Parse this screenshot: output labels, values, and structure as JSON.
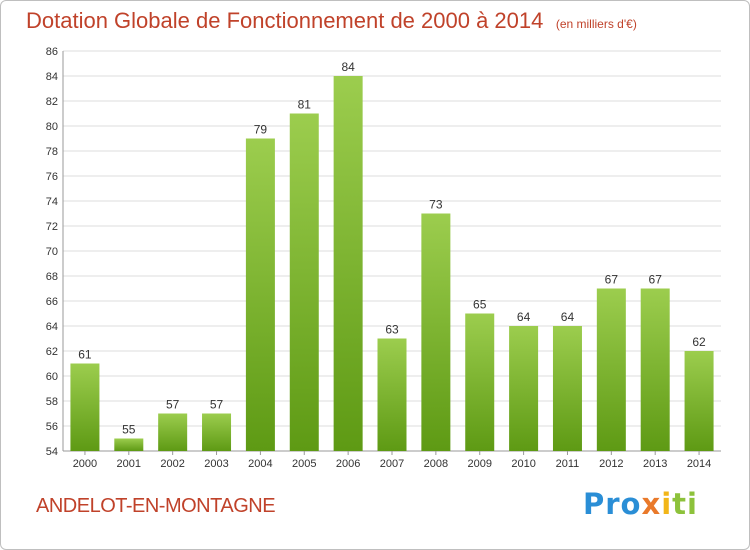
{
  "title": "Dotation Globale de Fonctionnement de 2000 à 2014",
  "unit": "(en milliers d'€)",
  "commune": "ANDELOT-EN-MONTAGNE",
  "logo": {
    "part1": "Pro",
    "part2": "x",
    "part3": "i",
    "part4": "ti"
  },
  "colors": {
    "bar_top": "#9ccd4e",
    "bar_bottom": "#5e9a14",
    "title": "#c0422a",
    "grid": "#dddddd"
  },
  "chart_data": {
    "type": "bar",
    "categories": [
      "2000",
      "2001",
      "2002",
      "2003",
      "2004",
      "2005",
      "2006",
      "2007",
      "2008",
      "2009",
      "2010",
      "2011",
      "2012",
      "2013",
      "2014"
    ],
    "values": [
      61,
      55,
      57,
      57,
      79,
      81,
      84,
      63,
      73,
      65,
      64,
      64,
      67,
      67,
      62
    ],
    "ylim": [
      54,
      86
    ],
    "yticks": [
      54,
      56,
      58,
      60,
      62,
      64,
      66,
      68,
      70,
      72,
      74,
      76,
      78,
      80,
      82,
      84,
      86
    ],
    "grid": true,
    "data_labels": true
  }
}
